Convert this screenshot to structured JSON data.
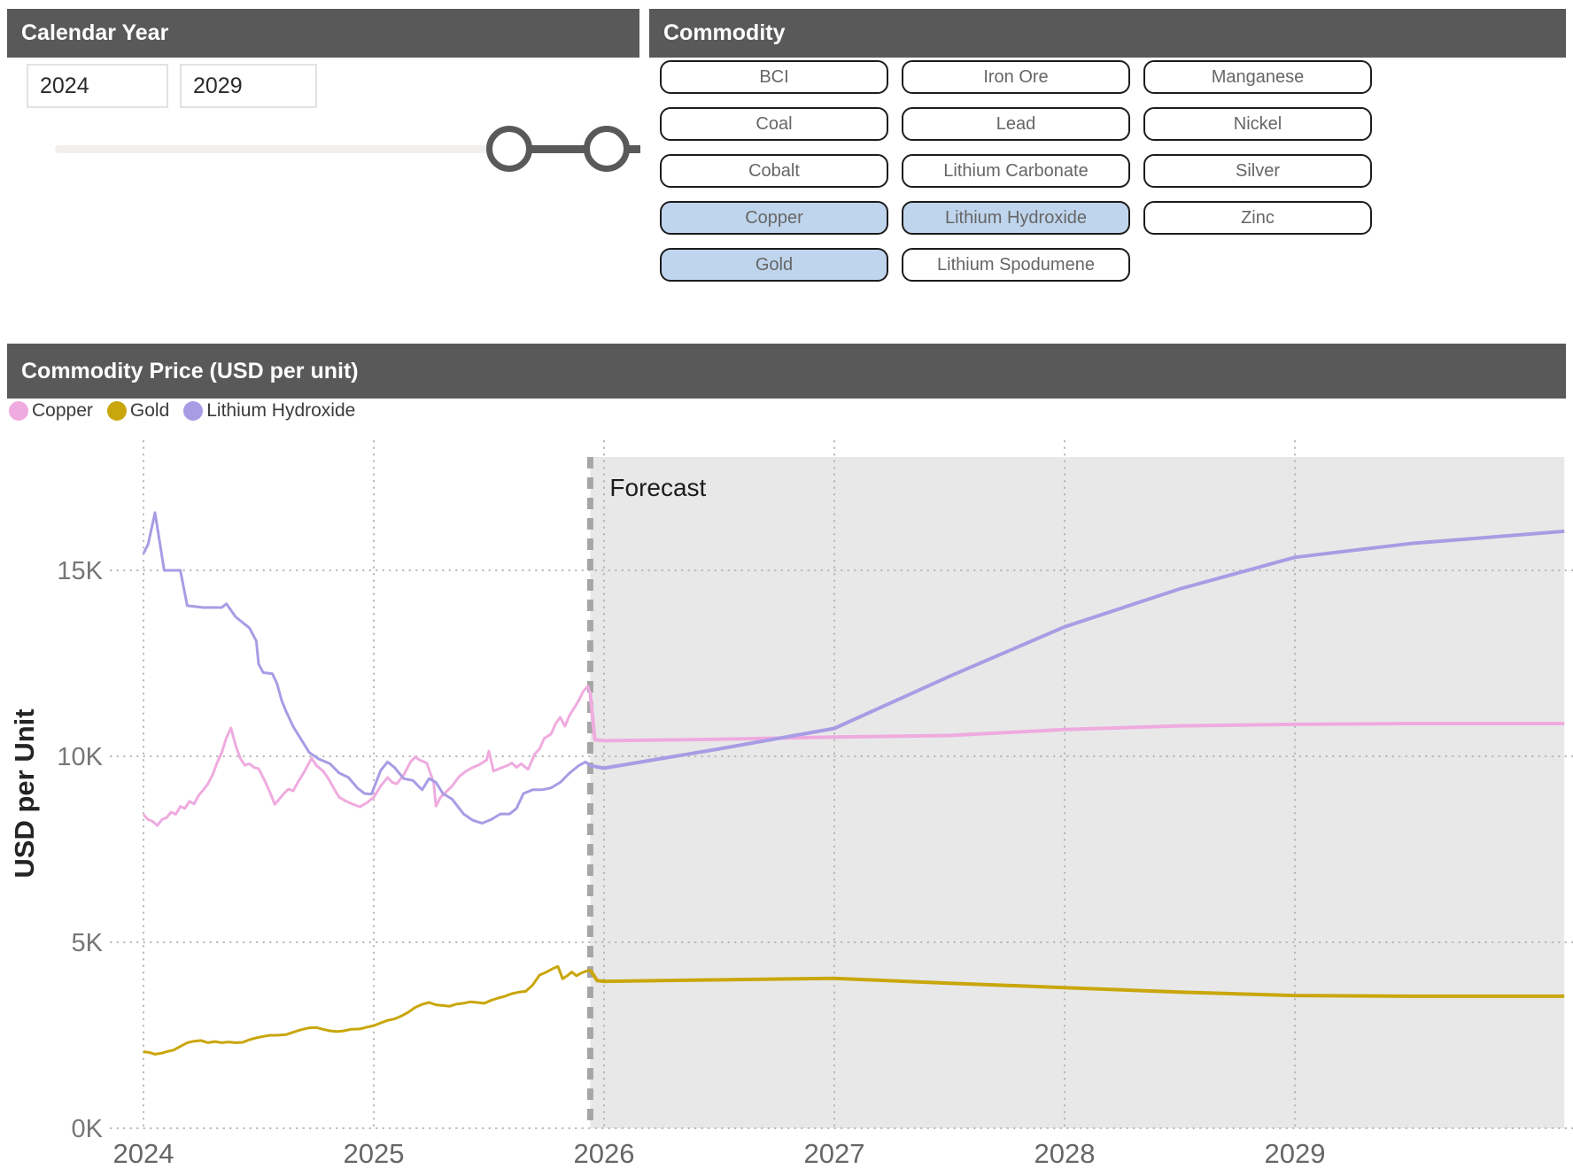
{
  "calendar": {
    "title": "Calendar Year",
    "range_start": "2024",
    "range_end": "2029"
  },
  "commodity": {
    "title": "Commodity",
    "selected_color": "#bfd5ed",
    "buttons": [
      {
        "label": "BCI",
        "selected": false
      },
      {
        "label": "Iron Ore",
        "selected": false
      },
      {
        "label": "Manganese",
        "selected": false
      },
      {
        "label": "Coal",
        "selected": false
      },
      {
        "label": "Lead",
        "selected": false
      },
      {
        "label": "Nickel",
        "selected": false
      },
      {
        "label": "Cobalt",
        "selected": false
      },
      {
        "label": "Lithium Carbonate",
        "selected": false
      },
      {
        "label": "Silver",
        "selected": false
      },
      {
        "label": "Copper",
        "selected": true
      },
      {
        "label": "Lithium Hydroxide",
        "selected": true
      },
      {
        "label": "Zinc",
        "selected": false
      },
      {
        "label": "Gold",
        "selected": true
      },
      {
        "label": "Lithium Spodumene",
        "selected": false
      }
    ]
  },
  "price_panel": {
    "title": "Commodity Price (USD per unit)",
    "forecast_label": "Forecast"
  },
  "chart_data": {
    "type": "line",
    "title": "Commodity Price (USD per unit)",
    "ylabel": "USD per Unit",
    "x_ticks": [
      "2024",
      "2025",
      "2026",
      "2027",
      "2028",
      "2029"
    ],
    "y_ticks": [
      "0K",
      "5K",
      "10K",
      "15K"
    ],
    "y_tick_values_k": [
      0,
      5,
      10,
      15
    ],
    "ylim_k": [
      0,
      18
    ],
    "x_start_year": 2024,
    "x_end_year": 2030.17,
    "forecast_start_year": 2025.94,
    "grid": "dotted",
    "legend_position": "top-left",
    "values_unit": "USD thousands per unit",
    "series": [
      {
        "name": "Copper",
        "color": "#efabdf",
        "history": [
          [
            0,
            8.43
          ],
          [
            0.02,
            8.3
          ],
          [
            0.04,
            8.25
          ],
          [
            0.06,
            8.14
          ],
          [
            0.08,
            8.3
          ],
          [
            0.1,
            8.35
          ],
          [
            0.12,
            8.5
          ],
          [
            0.14,
            8.44
          ],
          [
            0.16,
            8.65
          ],
          [
            0.18,
            8.6
          ],
          [
            0.2,
            8.79
          ],
          [
            0.22,
            8.72
          ],
          [
            0.24,
            8.95
          ],
          [
            0.26,
            9.1
          ],
          [
            0.28,
            9.26
          ],
          [
            0.3,
            9.5
          ],
          [
            0.32,
            9.83
          ],
          [
            0.34,
            10.1
          ],
          [
            0.36,
            10.5
          ],
          [
            0.38,
            10.76
          ],
          [
            0.4,
            10.3
          ],
          [
            0.42,
            9.95
          ],
          [
            0.44,
            9.76
          ],
          [
            0.46,
            9.8
          ],
          [
            0.48,
            9.7
          ],
          [
            0.5,
            9.67
          ],
          [
            0.53,
            9.3
          ],
          [
            0.55,
            9.02
          ],
          [
            0.57,
            8.71
          ],
          [
            0.59,
            8.85
          ],
          [
            0.61,
            9.0
          ],
          [
            0.63,
            9.12
          ],
          [
            0.65,
            9.07
          ],
          [
            0.67,
            9.3
          ],
          [
            0.7,
            9.6
          ],
          [
            0.73,
            9.95
          ],
          [
            0.75,
            9.76
          ],
          [
            0.78,
            9.6
          ],
          [
            0.8,
            9.43
          ],
          [
            0.83,
            9.1
          ],
          [
            0.85,
            8.9
          ],
          [
            0.88,
            8.79
          ],
          [
            0.91,
            8.71
          ],
          [
            0.94,
            8.64
          ],
          [
            0.97,
            8.75
          ],
          [
            1.0,
            8.9
          ],
          [
            1.03,
            9.2
          ],
          [
            1.06,
            9.43
          ],
          [
            1.08,
            9.3
          ],
          [
            1.1,
            9.26
          ],
          [
            1.13,
            9.5
          ],
          [
            1.16,
            9.85
          ],
          [
            1.18,
            9.98
          ],
          [
            1.2,
            9.9
          ],
          [
            1.23,
            9.82
          ],
          [
            1.26,
            9.3
          ],
          [
            1.27,
            8.66
          ],
          [
            1.29,
            8.9
          ],
          [
            1.31,
            9.02
          ],
          [
            1.34,
            9.2
          ],
          [
            1.37,
            9.45
          ],
          [
            1.4,
            9.6
          ],
          [
            1.43,
            9.7
          ],
          [
            1.46,
            9.78
          ],
          [
            1.49,
            9.9
          ],
          [
            1.5,
            10.14
          ],
          [
            1.52,
            9.6
          ],
          [
            1.55,
            9.68
          ],
          [
            1.58,
            9.75
          ],
          [
            1.6,
            9.82
          ],
          [
            1.62,
            9.7
          ],
          [
            1.64,
            9.8
          ],
          [
            1.67,
            9.65
          ],
          [
            1.7,
            10.07
          ],
          [
            1.72,
            10.2
          ],
          [
            1.74,
            10.48
          ],
          [
            1.77,
            10.6
          ],
          [
            1.79,
            10.88
          ],
          [
            1.81,
            11.05
          ],
          [
            1.83,
            10.81
          ],
          [
            1.85,
            11.1
          ],
          [
            1.87,
            11.3
          ],
          [
            1.89,
            11.5
          ],
          [
            1.91,
            11.75
          ],
          [
            1.93,
            11.88
          ],
          [
            1.94,
            11.7
          ]
        ],
        "forecast": [
          [
            1.94,
            11.7
          ],
          [
            1.96,
            10.45
          ],
          [
            2.0,
            10.42
          ],
          [
            2.5,
            10.46
          ],
          [
            3.0,
            10.52
          ],
          [
            3.5,
            10.56
          ],
          [
            4.0,
            10.72
          ],
          [
            4.5,
            10.82
          ],
          [
            5.0,
            10.86
          ],
          [
            5.5,
            10.88
          ],
          [
            6.17,
            10.88
          ]
        ]
      },
      {
        "name": "Gold",
        "color": "#c9a60c",
        "history": [
          [
            0,
            2.06
          ],
          [
            0.03,
            2.03
          ],
          [
            0.05,
            1.99
          ],
          [
            0.08,
            2.02
          ],
          [
            0.1,
            2.06
          ],
          [
            0.13,
            2.1
          ],
          [
            0.16,
            2.2
          ],
          [
            0.19,
            2.3
          ],
          [
            0.22,
            2.34
          ],
          [
            0.25,
            2.36
          ],
          [
            0.28,
            2.3
          ],
          [
            0.31,
            2.33
          ],
          [
            0.34,
            2.3
          ],
          [
            0.37,
            2.32
          ],
          [
            0.4,
            2.3
          ],
          [
            0.43,
            2.31
          ],
          [
            0.46,
            2.38
          ],
          [
            0.49,
            2.43
          ],
          [
            0.52,
            2.47
          ],
          [
            0.55,
            2.5
          ],
          [
            0.58,
            2.5
          ],
          [
            0.62,
            2.52
          ],
          [
            0.65,
            2.58
          ],
          [
            0.68,
            2.64
          ],
          [
            0.72,
            2.7
          ],
          [
            0.75,
            2.71
          ],
          [
            0.78,
            2.66
          ],
          [
            0.81,
            2.62
          ],
          [
            0.84,
            2.6
          ],
          [
            0.87,
            2.62
          ],
          [
            0.9,
            2.66
          ],
          [
            0.94,
            2.67
          ],
          [
            0.97,
            2.72
          ],
          [
            1.0,
            2.76
          ],
          [
            1.03,
            2.83
          ],
          [
            1.06,
            2.9
          ],
          [
            1.09,
            2.94
          ],
          [
            1.12,
            3.02
          ],
          [
            1.15,
            3.12
          ],
          [
            1.18,
            3.25
          ],
          [
            1.21,
            3.33
          ],
          [
            1.24,
            3.38
          ],
          [
            1.27,
            3.32
          ],
          [
            1.3,
            3.3
          ],
          [
            1.33,
            3.28
          ],
          [
            1.36,
            3.34
          ],
          [
            1.39,
            3.36
          ],
          [
            1.42,
            3.4
          ],
          [
            1.45,
            3.38
          ],
          [
            1.48,
            3.36
          ],
          [
            1.51,
            3.44
          ],
          [
            1.54,
            3.5
          ],
          [
            1.57,
            3.55
          ],
          [
            1.6,
            3.62
          ],
          [
            1.63,
            3.66
          ],
          [
            1.66,
            3.68
          ],
          [
            1.69,
            3.85
          ],
          [
            1.72,
            4.12
          ],
          [
            1.75,
            4.2
          ],
          [
            1.78,
            4.3
          ],
          [
            1.8,
            4.35
          ],
          [
            1.82,
            4.02
          ],
          [
            1.84,
            4.1
          ],
          [
            1.86,
            4.2
          ],
          [
            1.88,
            4.1
          ],
          [
            1.9,
            4.17
          ],
          [
            1.92,
            4.22
          ],
          [
            1.94,
            4.26
          ]
        ],
        "forecast": [
          [
            1.94,
            4.26
          ],
          [
            1.97,
            3.97
          ],
          [
            2.0,
            3.95
          ],
          [
            2.5,
            3.99
          ],
          [
            3.0,
            4.03
          ],
          [
            3.5,
            3.9
          ],
          [
            4.0,
            3.78
          ],
          [
            4.5,
            3.66
          ],
          [
            5.0,
            3.57
          ],
          [
            5.5,
            3.55
          ],
          [
            6.17,
            3.55
          ]
        ]
      },
      {
        "name": "Lithium Hydroxide",
        "color": "#a89ce4",
        "history": [
          [
            0,
            15.45
          ],
          [
            0.02,
            15.7
          ],
          [
            0.05,
            16.55
          ],
          [
            0.09,
            15.0
          ],
          [
            0.16,
            15.0
          ],
          [
            0.19,
            14.05
          ],
          [
            0.26,
            14.0
          ],
          [
            0.34,
            14.0
          ],
          [
            0.36,
            14.1
          ],
          [
            0.4,
            13.75
          ],
          [
            0.43,
            13.6
          ],
          [
            0.46,
            13.45
          ],
          [
            0.49,
            13.1
          ],
          [
            0.5,
            12.48
          ],
          [
            0.52,
            12.25
          ],
          [
            0.56,
            12.22
          ],
          [
            0.58,
            11.95
          ],
          [
            0.6,
            11.5
          ],
          [
            0.62,
            11.2
          ],
          [
            0.65,
            10.8
          ],
          [
            0.69,
            10.4
          ],
          [
            0.72,
            10.1
          ],
          [
            0.76,
            9.93
          ],
          [
            0.81,
            9.8
          ],
          [
            0.85,
            9.55
          ],
          [
            0.89,
            9.43
          ],
          [
            0.93,
            9.14
          ],
          [
            0.96,
            9.0
          ],
          [
            0.99,
            8.98
          ],
          [
            1.03,
            9.62
          ],
          [
            1.06,
            9.85
          ],
          [
            1.09,
            9.7
          ],
          [
            1.13,
            9.4
          ],
          [
            1.17,
            9.35
          ],
          [
            1.21,
            9.1
          ],
          [
            1.24,
            9.4
          ],
          [
            1.27,
            9.3
          ],
          [
            1.3,
            9.0
          ],
          [
            1.34,
            8.85
          ],
          [
            1.39,
            8.45
          ],
          [
            1.43,
            8.28
          ],
          [
            1.47,
            8.2
          ],
          [
            1.51,
            8.3
          ],
          [
            1.55,
            8.45
          ],
          [
            1.59,
            8.45
          ],
          [
            1.62,
            8.6
          ],
          [
            1.65,
            9.0
          ],
          [
            1.69,
            9.1
          ],
          [
            1.73,
            9.1
          ],
          [
            1.77,
            9.15
          ],
          [
            1.81,
            9.3
          ],
          [
            1.85,
            9.55
          ],
          [
            1.89,
            9.75
          ],
          [
            1.92,
            9.85
          ],
          [
            1.94,
            9.75
          ]
        ],
        "forecast": [
          [
            1.94,
            9.75
          ],
          [
            2.0,
            9.68
          ],
          [
            2.5,
            10.2
          ],
          [
            3.0,
            10.75
          ],
          [
            3.5,
            12.15
          ],
          [
            4.0,
            13.48
          ],
          [
            4.5,
            14.5
          ],
          [
            5.0,
            15.35
          ],
          [
            5.5,
            15.72
          ],
          [
            6.17,
            16.05
          ]
        ]
      }
    ]
  }
}
